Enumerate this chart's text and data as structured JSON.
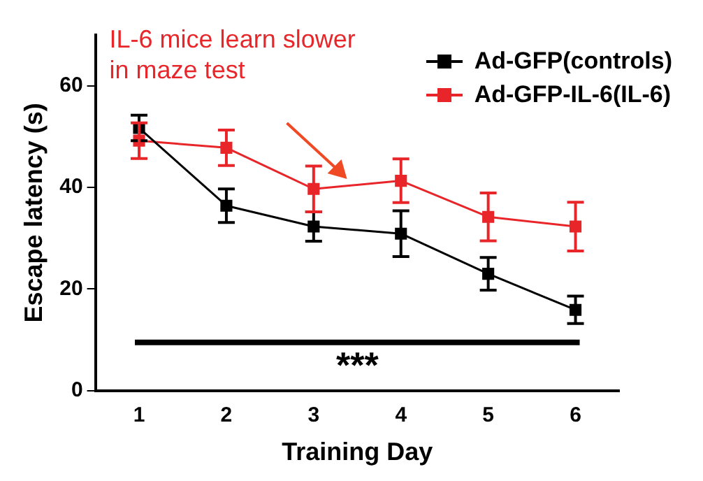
{
  "chart_data": {
    "type": "line",
    "xlabel": "Training Day",
    "ylabel": "Escape latency (s)",
    "x": [
      1,
      2,
      3,
      4,
      5,
      6
    ],
    "xlim": [
      0.5,
      6.5
    ],
    "xticks": [
      1,
      2,
      3,
      4,
      5,
      6
    ],
    "ylim": [
      0,
      70
    ],
    "yticks": [
      0,
      20,
      40,
      60
    ],
    "series": [
      {
        "name": "Ad-GFP(controls)",
        "color": "#000000",
        "values": [
          51.7,
          36.4,
          32.3,
          30.9,
          23.0,
          15.9
        ],
        "errors": [
          2.5,
          3.3,
          2.9,
          4.5,
          3.2,
          2.7
        ]
      },
      {
        "name": "Ad-GFP-IL-6(IL-6)",
        "color": "#e8262a",
        "values": [
          49.2,
          47.8,
          39.7,
          41.3,
          34.2,
          32.3
        ],
        "errors": [
          3.5,
          3.5,
          4.5,
          4.3,
          4.7,
          4.8
        ]
      }
    ],
    "marker": "square",
    "legend": "top right",
    "grid": false,
    "ref_lines": [
      {
        "axis": "y",
        "value": 9.5,
        "color": "#000000"
      }
    ],
    "annotations": [
      "IL-6 mice learn slower\nin maze test",
      "***"
    ]
  }
}
